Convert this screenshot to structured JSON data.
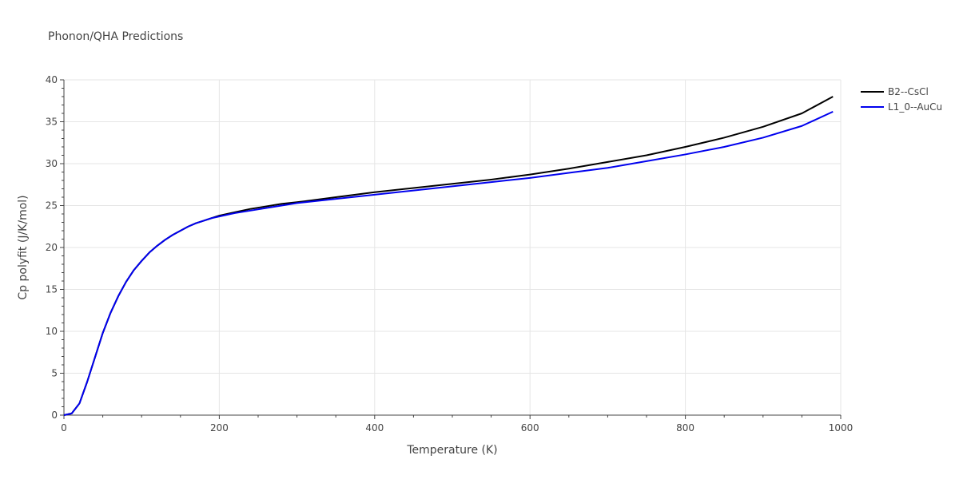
{
  "chart_data": {
    "type": "line",
    "title": "Phonon/QHA Predictions",
    "xlabel": "Temperature (K)",
    "ylabel": "Cp polyfit (J/K/mol)",
    "xlim": [
      0,
      1000
    ],
    "ylim": [
      0,
      40
    ],
    "xticks": [
      0,
      200,
      400,
      600,
      800,
      1000
    ],
    "yticks": [
      0,
      5,
      10,
      15,
      20,
      25,
      30,
      35,
      40
    ],
    "grid": true,
    "legend_position": "top-right",
    "series": [
      {
        "name": "B2--CsCl",
        "color": "#000000",
        "x": [
          0,
          10,
          20,
          30,
          40,
          50,
          60,
          70,
          80,
          90,
          100,
          110,
          120,
          130,
          140,
          150,
          160,
          170,
          180,
          190,
          200,
          220,
          240,
          260,
          280,
          300,
          350,
          400,
          450,
          500,
          550,
          600,
          650,
          700,
          750,
          800,
          850,
          900,
          950,
          990
        ],
        "values": [
          0,
          0.2,
          1.4,
          4.0,
          6.9,
          9.8,
          12.2,
          14.2,
          15.9,
          17.3,
          18.4,
          19.4,
          20.2,
          20.9,
          21.5,
          22.0,
          22.5,
          22.9,
          23.2,
          23.5,
          23.8,
          24.2,
          24.6,
          24.9,
          25.2,
          25.4,
          26.0,
          26.6,
          27.1,
          27.6,
          28.1,
          28.7,
          29.4,
          30.2,
          31.0,
          32.0,
          33.1,
          34.4,
          36.0,
          38.0
        ]
      },
      {
        "name": "L1_0--AuCu",
        "color": "#0000ee",
        "x": [
          0,
          10,
          20,
          30,
          40,
          50,
          60,
          70,
          80,
          90,
          100,
          110,
          120,
          130,
          140,
          150,
          160,
          170,
          180,
          190,
          200,
          220,
          240,
          260,
          280,
          300,
          350,
          400,
          450,
          500,
          550,
          600,
          650,
          700,
          750,
          800,
          850,
          900,
          950,
          990
        ],
        "values": [
          0,
          0.2,
          1.4,
          4.0,
          6.9,
          9.8,
          12.2,
          14.2,
          15.9,
          17.3,
          18.4,
          19.4,
          20.2,
          20.9,
          21.5,
          22.0,
          22.5,
          22.9,
          23.2,
          23.5,
          23.7,
          24.1,
          24.4,
          24.7,
          25.0,
          25.3,
          25.8,
          26.3,
          26.8,
          27.3,
          27.8,
          28.3,
          28.9,
          29.5,
          30.3,
          31.1,
          32.0,
          33.1,
          34.5,
          36.2
        ]
      }
    ]
  }
}
